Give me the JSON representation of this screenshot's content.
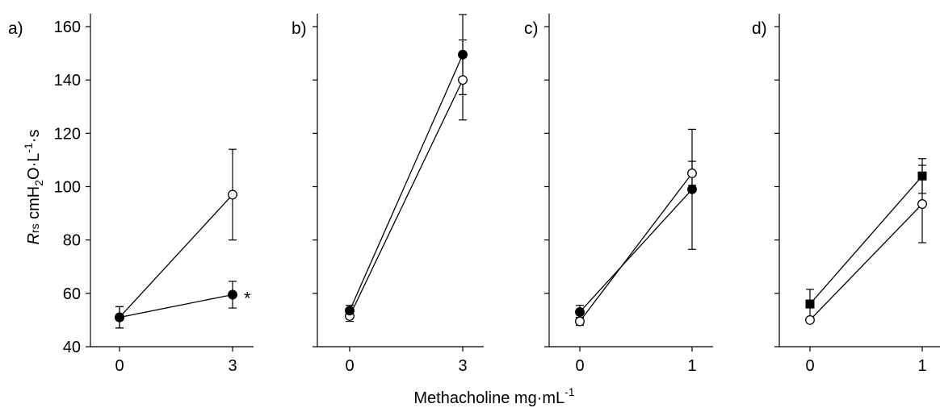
{
  "chart_data": {
    "type": "line",
    "x_axis_label": "Methacholine",
    "x_axis_unit": "mg·mL",
    "x_axis_unit_sup": "-1",
    "y_axis_label_italic": "R",
    "y_axis_label_sub": "rs",
    "y_axis_unit_parts": [
      "cmH",
      "2",
      "O·L",
      "-1",
      "·s"
    ],
    "ylim": [
      40,
      160
    ],
    "y_ticks": [
      40,
      60,
      80,
      100,
      120,
      140,
      160
    ],
    "y_tick_labels": [
      "40",
      "60",
      "80",
      "100",
      "120",
      "140",
      "160"
    ],
    "legend": "none",
    "grid": false,
    "panels": [
      {
        "label": "a)",
        "categories": [
          "0",
          "3"
        ],
        "series": [
          {
            "marker": "open-circle",
            "values": [
              51,
              97
            ],
            "errors": [
              4,
              17
            ]
          },
          {
            "marker": "filled-circle",
            "values": [
              51,
              59.5
            ],
            "errors": [
              4,
              5
            ]
          }
        ],
        "annotations": [
          {
            "text": "*",
            "series": 1,
            "point": 1
          }
        ]
      },
      {
        "label": "b)",
        "categories": [
          "0",
          "3"
        ],
        "series": [
          {
            "marker": "open-circle",
            "values": [
              51.5,
              140
            ],
            "errors": [
              2,
              15
            ]
          },
          {
            "marker": "filled-circle",
            "values": [
              53.5,
              149.5
            ],
            "errors": [
              2,
              15
            ]
          }
        ],
        "annotations": []
      },
      {
        "label": "c)",
        "categories": [
          "0",
          "1"
        ],
        "series": [
          {
            "marker": "open-circle",
            "values": [
              49.5,
              105
            ],
            "errors": [
              1.5,
              4.5
            ]
          },
          {
            "marker": "filled-circle",
            "values": [
              53,
              99
            ],
            "errors": [
              2.5,
              22.5
            ]
          }
        ],
        "annotations": []
      },
      {
        "label": "d)",
        "categories": [
          "0",
          "1"
        ],
        "series": [
          {
            "marker": "open-circle",
            "values": [
              50,
              93.5
            ],
            "errors": [
              0,
              14.5
            ]
          },
          {
            "marker": "filled-square",
            "values": [
              56,
              104
            ],
            "errors": [
              5.5,
              6.5
            ]
          }
        ],
        "annotations": []
      }
    ]
  }
}
